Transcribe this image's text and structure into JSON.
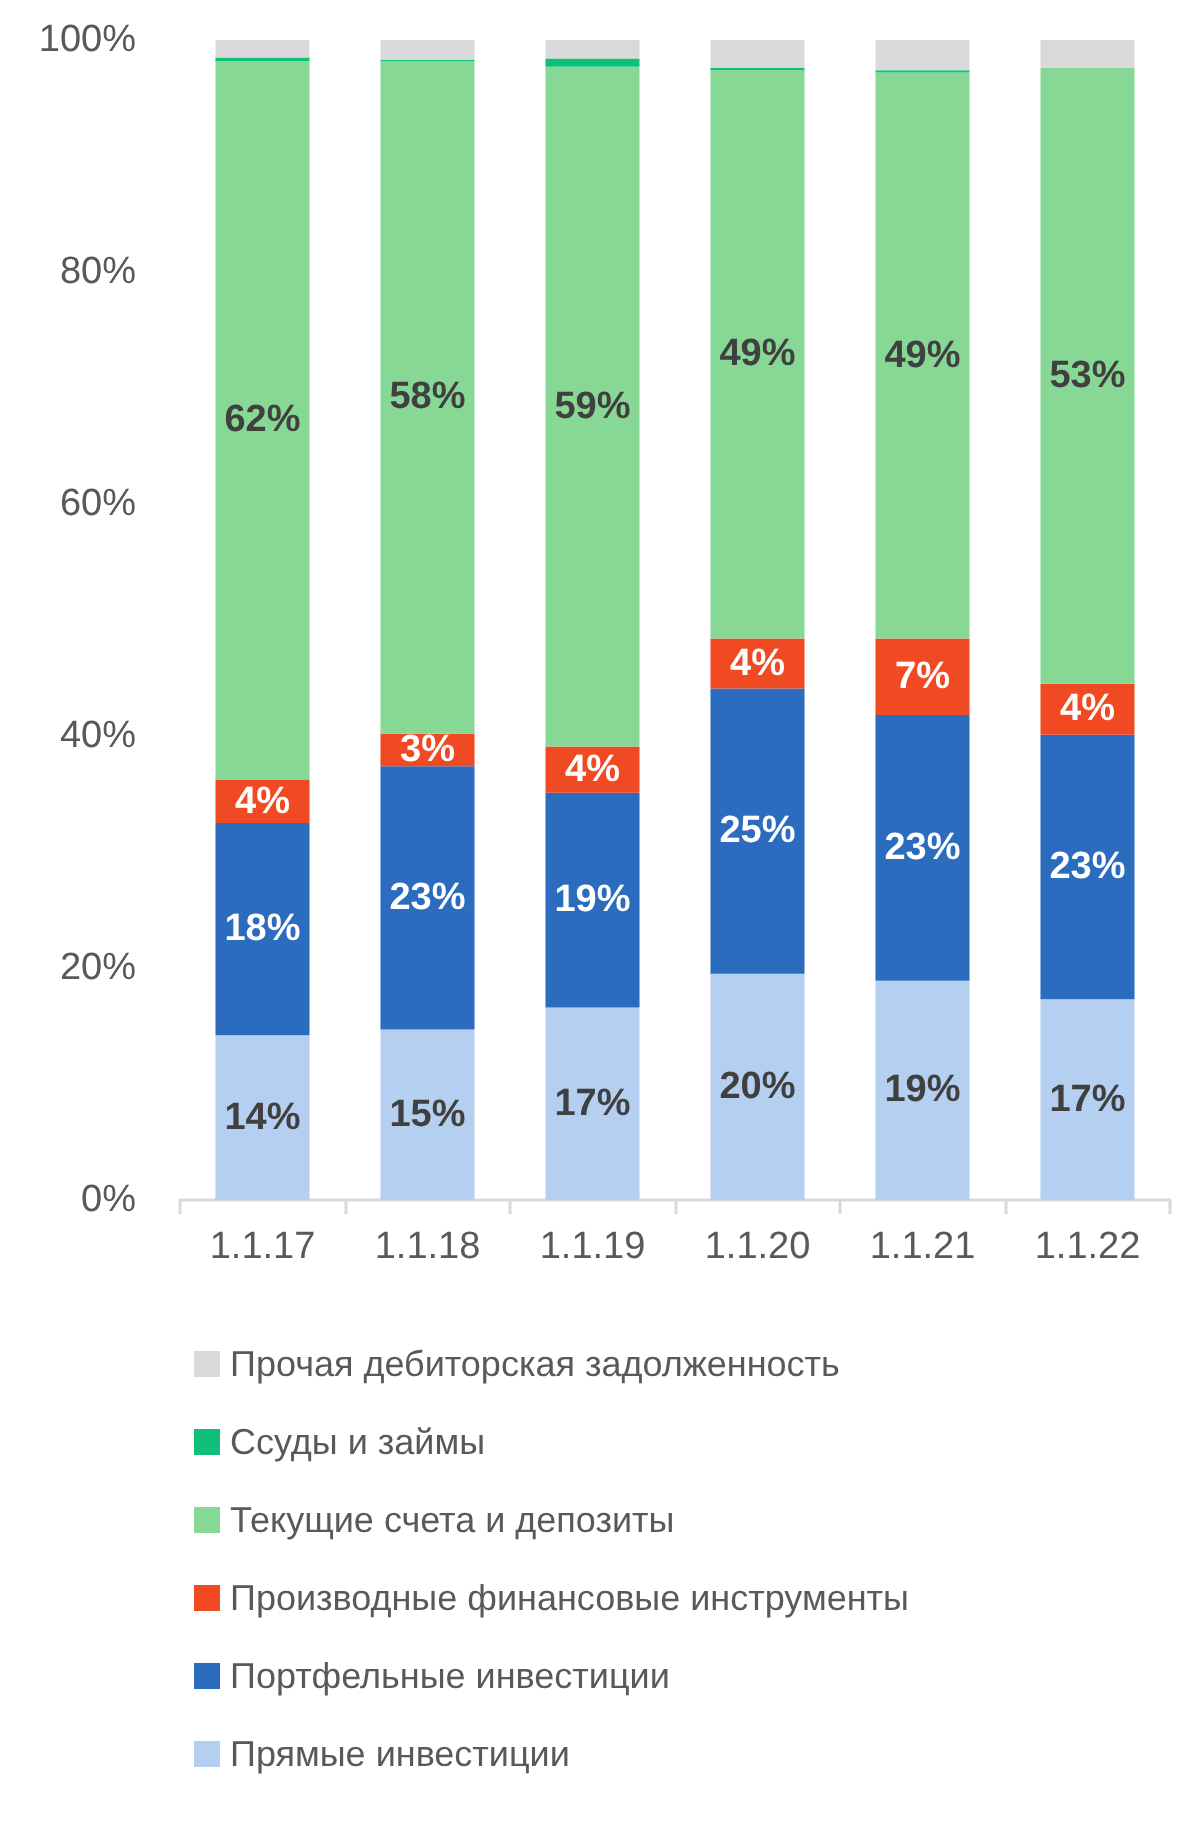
{
  "chart_data": {
    "type": "bar",
    "stacked": true,
    "categories": [
      "1.1.17",
      "1.1.18",
      "1.1.19",
      "1.1.20",
      "1.1.21",
      "1.1.22"
    ],
    "series": [
      {
        "name": "Прямые инвестиции",
        "color": "#b4cff0",
        "values": [
          14.2,
          14.7,
          16.6,
          19.5,
          18.9,
          17.3
        ],
        "value_labels": [
          "14%",
          "15%",
          "17%",
          "20%",
          "19%",
          "17%"
        ]
      },
      {
        "name": "Портфельные инвестиции",
        "color": "#2b6cbf",
        "values": [
          18.3,
          22.7,
          18.5,
          24.6,
          22.9,
          22.8
        ],
        "value_labels": [
          "18%",
          "23%",
          "19%",
          "25%",
          "23%",
          "23%"
        ]
      },
      {
        "name": "Производные финансовые инструменты",
        "color": "#f04a23",
        "values": [
          3.7,
          2.8,
          4.0,
          4.3,
          6.6,
          4.4
        ],
        "value_labels": [
          "4%",
          "3%",
          "4%",
          "4%",
          "7%",
          "4%"
        ]
      },
      {
        "name": "Текущие счета и депозиты",
        "color": "#88d895",
        "values": [
          62.0,
          58.0,
          58.6,
          49.0,
          48.8,
          53.1
        ],
        "value_labels": [
          "62%",
          "58%",
          "59%",
          "49%",
          "49%",
          "53%"
        ]
      },
      {
        "name": "Ссуды и займы",
        "color": "#10c07a",
        "values": [
          0.3,
          0.1,
          0.7,
          0.2,
          0.2,
          0
        ]
      },
      {
        "name": "Прочая дебиторская задолженность",
        "color": "#d9d9d9",
        "values": [
          1.5,
          1.7,
          1.6,
          2.4,
          2.6,
          2.4
        ]
      }
    ],
    "ylim": [
      0,
      100
    ],
    "yticks": [
      {
        "value": 0,
        "label": "0%"
      },
      {
        "value": 20,
        "label": "20%"
      },
      {
        "value": 40,
        "label": "40%"
      },
      {
        "value": 60,
        "label": "60%"
      },
      {
        "value": 80,
        "label": "80%"
      },
      {
        "value": 100,
        "label": "100%"
      }
    ],
    "grid": false,
    "legend": "bottom"
  }
}
